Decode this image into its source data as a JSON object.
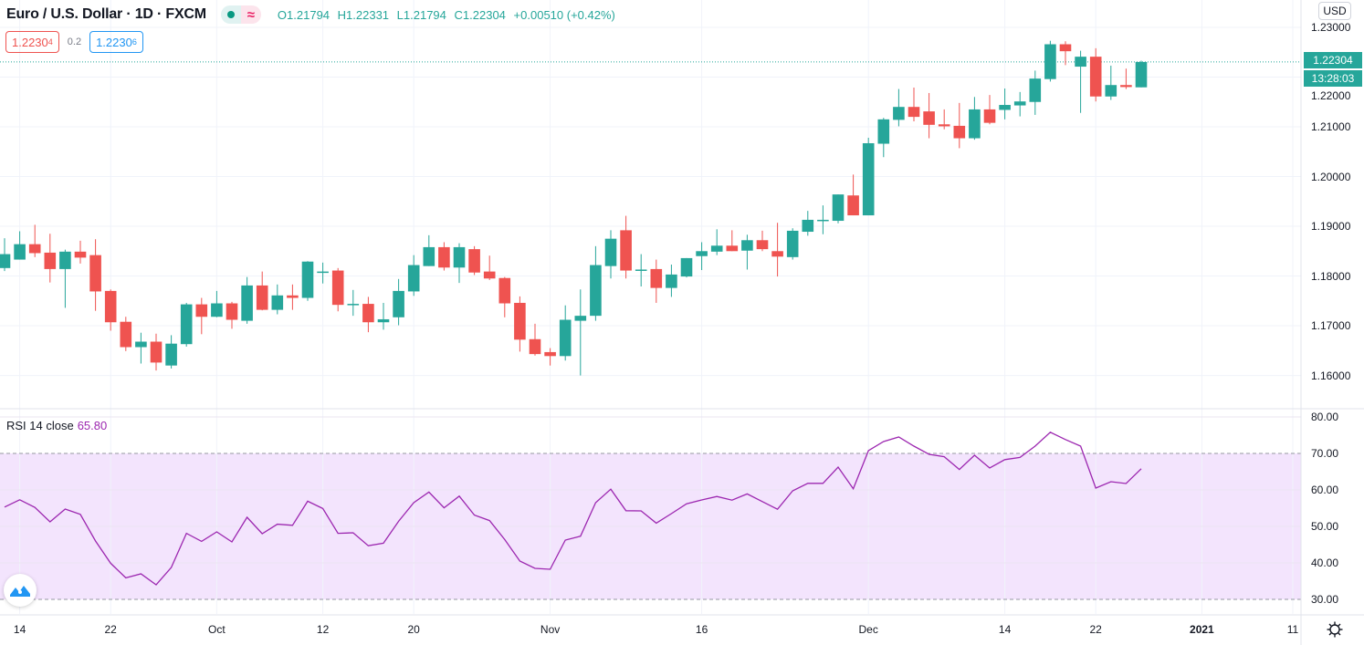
{
  "header": {
    "title": "Euro / U.S. Dollar · 1D · FXCM",
    "ohlc": {
      "open": "O1.21794",
      "high": "H1.22331",
      "low": "L1.21794",
      "close": "C1.22304",
      "change": "+0.00510 (+0.42%)"
    },
    "market_status_icon": "market-open-dot-icon",
    "data_status_icon": "delayed-data-icon",
    "data_status_glyph": "≈"
  },
  "trade": {
    "sell_price": "1.2230",
    "sell_pip": "4",
    "spread": "0.2",
    "buy_price": "1.2230",
    "buy_pip": "6"
  },
  "price_axis": {
    "currency": "USD",
    "labels": [
      "1.23000",
      "1.22000",
      "1.21000",
      "1.20000",
      "1.19000",
      "1.18000",
      "1.17000",
      "1.16000"
    ],
    "current_price": "1.22304",
    "countdown": "13:28:03"
  },
  "rsi": {
    "label": "RSI 14 close",
    "value": "65.80",
    "axis_labels": [
      "80.00",
      "70.00",
      "60.00",
      "50.00",
      "40.00",
      "30.00"
    ]
  },
  "colors": {
    "up": "#26a69a",
    "down": "#ef5350",
    "rsi_line": "#9c27b0",
    "rsi_band": "#f3e4fd"
  },
  "chart_data": [
    {
      "type": "candlestick",
      "title": "Euro / U.S. Dollar · 1D · FXCM",
      "ylim": [
        1.1535,
        1.2355
      ],
      "yticks": [
        1.23,
        1.22,
        1.21,
        1.2,
        1.19,
        1.18,
        1.17,
        1.16
      ],
      "grid": true,
      "current_price_line": 1.22304,
      "xticks": [
        {
          "label": "14",
          "bar": 1
        },
        {
          "label": "22",
          "bar": 7
        },
        {
          "label": "Oct",
          "bar": 14
        },
        {
          "label": "12",
          "bar": 21
        },
        {
          "label": "20",
          "bar": 27
        },
        {
          "label": "Nov",
          "bar": 36
        },
        {
          "label": "16",
          "bar": 46
        },
        {
          "label": "Dec",
          "bar": 57
        },
        {
          "label": "14",
          "bar": 66
        },
        {
          "label": "22",
          "bar": 72
        },
        {
          "label": "2021",
          "bar": 79
        },
        {
          "label": "11",
          "bar": 85
        }
      ],
      "ohlc": [
        [
          1.1816,
          1.1876,
          1.181,
          1.1844
        ],
        [
          1.1833,
          1.189,
          1.1833,
          1.1864
        ],
        [
          1.1864,
          1.1903,
          1.1838,
          1.1846
        ],
        [
          1.1847,
          1.1885,
          1.1787,
          1.1814
        ],
        [
          1.1814,
          1.1853,
          1.1736,
          1.1849
        ],
        [
          1.1849,
          1.1871,
          1.1825,
          1.1837
        ],
        [
          1.1842,
          1.1874,
          1.173,
          1.1769
        ],
        [
          1.177,
          1.1773,
          1.169,
          1.1707
        ],
        [
          1.1708,
          1.1718,
          1.1649,
          1.1657
        ],
        [
          1.1657,
          1.1686,
          1.1624,
          1.1668
        ],
        [
          1.1668,
          1.1684,
          1.161,
          1.1626
        ],
        [
          1.162,
          1.1681,
          1.1614,
          1.1664
        ],
        [
          1.1663,
          1.1746,
          1.1658,
          1.1743
        ],
        [
          1.1743,
          1.1756,
          1.1683,
          1.1718
        ],
        [
          1.1718,
          1.177,
          1.1717,
          1.1745
        ],
        [
          1.1745,
          1.1748,
          1.1694,
          1.1712
        ],
        [
          1.171,
          1.1798,
          1.1704,
          1.1781
        ],
        [
          1.1781,
          1.1809,
          1.1731,
          1.1732
        ],
        [
          1.1732,
          1.1783,
          1.1723,
          1.1761
        ],
        [
          1.1761,
          1.1783,
          1.1732,
          1.1756
        ],
        [
          1.1756,
          1.183,
          1.175,
          1.1829
        ],
        [
          1.1808,
          1.1827,
          1.1785,
          1.1809
        ],
        [
          1.1811,
          1.1816,
          1.1729,
          1.1742
        ],
        [
          1.1743,
          1.1772,
          1.172,
          1.1744
        ],
        [
          1.1744,
          1.1758,
          1.1687,
          1.1707
        ],
        [
          1.1707,
          1.1746,
          1.1692,
          1.1713
        ],
        [
          1.1717,
          1.1794,
          1.1701,
          1.177
        ],
        [
          1.1769,
          1.1842,
          1.176,
          1.1822
        ],
        [
          1.182,
          1.1882,
          1.182,
          1.1858
        ],
        [
          1.1858,
          1.1868,
          1.1811,
          1.1817
        ],
        [
          1.1817,
          1.1866,
          1.1786,
          1.1858
        ],
        [
          1.1854,
          1.186,
          1.1802,
          1.1807
        ],
        [
          1.1809,
          1.1841,
          1.1792,
          1.1795
        ],
        [
          1.1796,
          1.1798,
          1.1717,
          1.1745
        ],
        [
          1.1746,
          1.1759,
          1.1648,
          1.1672
        ],
        [
          1.1673,
          1.1704,
          1.164,
          1.1643
        ],
        [
          1.1647,
          1.1655,
          1.162,
          1.1639
        ],
        [
          1.1639,
          1.1741,
          1.163,
          1.1712
        ],
        [
          1.171,
          1.1773,
          1.16,
          1.172
        ],
        [
          1.172,
          1.186,
          1.171,
          1.1822
        ],
        [
          1.182,
          1.1892,
          1.1795,
          1.1875
        ],
        [
          1.1892,
          1.1921,
          1.1795,
          1.1811
        ],
        [
          1.1812,
          1.1844,
          1.1779,
          1.1813
        ],
        [
          1.1814,
          1.1833,
          1.1746,
          1.1776
        ],
        [
          1.1776,
          1.1823,
          1.1758,
          1.1803
        ],
        [
          1.1799,
          1.1836,
          1.1797,
          1.1836
        ],
        [
          1.184,
          1.1868,
          1.1812,
          1.185
        ],
        [
          1.1849,
          1.1894,
          1.1842,
          1.1861
        ],
        [
          1.1861,
          1.1892,
          1.185,
          1.185
        ],
        [
          1.1851,
          1.1883,
          1.1813,
          1.1872
        ],
        [
          1.1872,
          1.1891,
          1.185,
          1.1854
        ],
        [
          1.185,
          1.1907,
          1.1799,
          1.1839
        ],
        [
          1.1838,
          1.1896,
          1.1833,
          1.1891
        ],
        [
          1.1889,
          1.1931,
          1.1881,
          1.1913
        ],
        [
          1.1912,
          1.1942,
          1.1884,
          1.1913
        ],
        [
          1.1911,
          1.1964,
          1.1906,
          1.1964
        ],
        [
          1.1962,
          1.2004,
          1.1922,
          1.1922
        ],
        [
          1.1922,
          1.2078,
          1.1922,
          1.2067
        ],
        [
          1.2066,
          1.2118,
          1.2039,
          1.2115
        ],
        [
          1.2114,
          1.2176,
          1.2101,
          1.214
        ],
        [
          1.214,
          1.2179,
          1.2111,
          1.212
        ],
        [
          1.2131,
          1.2168,
          1.2077,
          1.2104
        ],
        [
          1.2105,
          1.2135,
          1.2095,
          1.2101
        ],
        [
          1.2102,
          1.2148,
          1.2057,
          1.2077
        ],
        [
          1.2077,
          1.216,
          1.2074,
          1.2135
        ],
        [
          1.2135,
          1.2164,
          1.2105,
          1.2108
        ],
        [
          1.2134,
          1.2177,
          1.2115,
          1.2144
        ],
        [
          1.2143,
          1.217,
          1.2121,
          1.2151
        ],
        [
          1.215,
          1.2213,
          1.2124,
          1.2197
        ],
        [
          1.2196,
          1.2273,
          1.2191,
          1.2266
        ],
        [
          1.2266,
          1.2272,
          1.2224,
          1.2252
        ],
        [
          1.2221,
          1.2253,
          1.2128,
          1.2241
        ],
        [
          1.2241,
          1.2258,
          1.2151,
          1.2161
        ],
        [
          1.2161,
          1.2223,
          1.2154,
          1.2184
        ],
        [
          1.2184,
          1.2217,
          1.2176,
          1.218
        ],
        [
          1.21794,
          1.22331,
          1.21794,
          1.22304
        ]
      ]
    },
    {
      "type": "line",
      "title": "RSI 14 close",
      "ylim": [
        26,
        82
      ],
      "yticks": [
        80,
        70,
        60,
        50,
        40,
        30
      ],
      "band": [
        30,
        70
      ],
      "values": [
        55.3,
        57.3,
        55.2,
        51.25,
        54.75,
        53.3,
        46,
        39.9,
        35.9,
        37,
        34,
        38.75,
        48.1,
        45.9,
        48.5,
        45.75,
        52.5,
        48,
        50.6,
        50.3,
        56.9,
        54.9,
        48.1,
        48.25,
        44.7,
        45.4,
        51.4,
        56.5,
        59.4,
        55.1,
        58.3,
        53.1,
        51.6,
        46.4,
        40.5,
        38.5,
        38.25,
        46.25,
        47.3,
        56.5,
        60.2,
        54.3,
        54.25,
        50.9,
        53.5,
        56.2,
        57.25,
        58.2,
        57.2,
        58.9,
        56.8,
        54.7,
        59.75,
        61.8,
        61.8,
        66.25,
        60.3,
        70.75,
        73.25,
        74.5,
        72,
        69.75,
        69.1,
        65.6,
        69.5,
        66,
        68.3,
        68.9,
        72,
        75.8,
        73.8,
        72,
        60.5,
        62.25,
        61.75,
        65.8
      ]
    }
  ]
}
